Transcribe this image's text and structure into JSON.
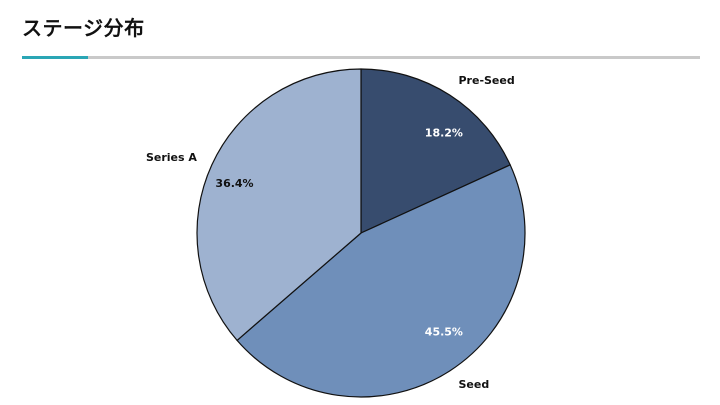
{
  "header": {
    "title": "ステージ分布"
  },
  "colors": {
    "accent": "#2aa6b5",
    "rule": "#c9c9c9",
    "slice_outline": "#111111"
  },
  "chart_data": {
    "type": "pie",
    "title": "ステージ分布",
    "start_angle_deg": 0,
    "direction": "clockwise",
    "slices": [
      {
        "label": "Pre-Seed",
        "value": 18.2,
        "pct_label": "18.2%",
        "color": "#374c6e",
        "pct_color": "#ffffff"
      },
      {
        "label": "Seed",
        "value": 45.5,
        "pct_label": "45.5%",
        "color": "#6f8fba",
        "pct_color": "#ffffff"
      },
      {
        "label": "Series A",
        "value": 36.4,
        "pct_label": "36.4%",
        "color": "#9eb2d0",
        "pct_color": "#111111"
      }
    ]
  }
}
